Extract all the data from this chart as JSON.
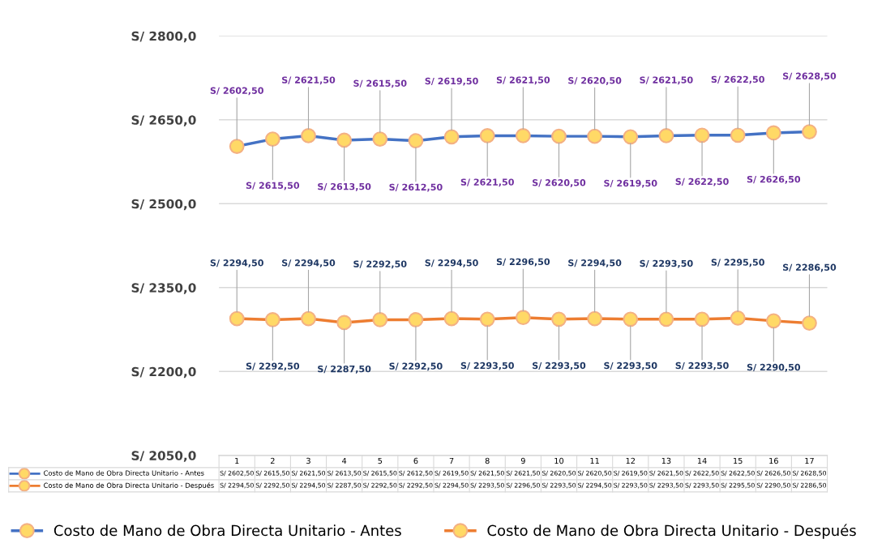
{
  "chart_data": {
    "type": "line",
    "categories": [
      "1",
      "2",
      "3",
      "4",
      "5",
      "6",
      "7",
      "8",
      "9",
      "10",
      "11",
      "12",
      "13",
      "14",
      "15",
      "16",
      "17"
    ],
    "series": [
      {
        "name": "Costo de Mano de Obra Directa Unitario - Antes",
        "color": "#4472c4",
        "values": [
          2602.5,
          2615.5,
          2621.5,
          2613.5,
          2615.5,
          2612.5,
          2619.5,
          2621.5,
          2621.5,
          2620.5,
          2620.5,
          2619.5,
          2621.5,
          2622.5,
          2622.5,
          2626.5,
          2628.5
        ],
        "value_labels": [
          "S/ 2602,50",
          "S/ 2615,50",
          "S/ 2621,50",
          "S/ 2613,50",
          "S/ 2615,50",
          "S/ 2612,50",
          "S/ 2619,50",
          "S/ 2621,50",
          "S/ 2621,50",
          "S/ 2620,50",
          "S/ 2620,50",
          "S/ 2619,50",
          "S/ 2621,50",
          "S/ 2622,50",
          "S/ 2622,50",
          "S/ 2626,50",
          "S/ 2628,50"
        ]
      },
      {
        "name": "Costo de Mano de Obra Directa Unitario - Después",
        "color": "#ed7d31",
        "values": [
          2294.5,
          2292.5,
          2294.5,
          2287.5,
          2292.5,
          2292.5,
          2294.5,
          2293.5,
          2296.5,
          2293.5,
          2294.5,
          2293.5,
          2293.5,
          2293.5,
          2295.5,
          2290.5,
          2286.5
        ],
        "value_labels": [
          "S/ 2294,50",
          "S/ 2292,50",
          "S/ 2294,50",
          "S/ 2287,50",
          "S/ 2292,50",
          "S/ 2292,50",
          "S/ 2294,50",
          "S/ 2293,50",
          "S/ 2296,50",
          "S/ 2293,50",
          "S/ 2294,50",
          "S/ 2293,50",
          "S/ 2293,50",
          "S/ 2293,50",
          "S/ 2295,50",
          "S/ 2290,50",
          "S/ 2286,50"
        ]
      }
    ],
    "ylim": [
      2050,
      2800
    ],
    "yticks": [
      {
        "value": 2050,
        "label": "S/ 2050,0"
      },
      {
        "value": 2200,
        "label": "S/ 2200,0"
      },
      {
        "value": 2350,
        "label": "S/ 2350,0"
      },
      {
        "value": 2500,
        "label": "S/ 2500,0"
      },
      {
        "value": 2650,
        "label": "S/ 2650,0"
      },
      {
        "value": 2800,
        "label": "S/ 2800,0"
      }
    ],
    "grid": "y",
    "legend": "bottom",
    "marker": "circle",
    "line_style": "solid"
  }
}
